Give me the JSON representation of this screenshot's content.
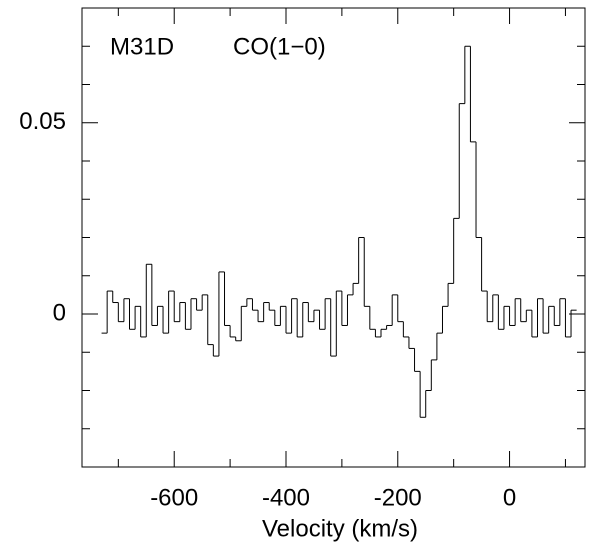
{
  "chart_data": {
    "type": "step",
    "source_label": "M31D",
    "line_label": "CO(1−0)",
    "xlabel": "Velocity (km/s)",
    "x": [
      -725,
      -715,
      -705,
      -695,
      -685,
      -675,
      -665,
      -655,
      -645,
      -635,
      -625,
      -615,
      -605,
      -595,
      -585,
      -575,
      -565,
      -555,
      -545,
      -535,
      -525,
      -515,
      -505,
      -495,
      -485,
      -475,
      -465,
      -455,
      -445,
      -435,
      -425,
      -415,
      -405,
      -395,
      -385,
      -375,
      -365,
      -355,
      -345,
      -335,
      -325,
      -315,
      -305,
      -295,
      -285,
      -275,
      -265,
      -255,
      -245,
      -235,
      -225,
      -215,
      -205,
      -195,
      -185,
      -175,
      -165,
      -155,
      -145,
      -135,
      -125,
      -115,
      -105,
      -95,
      -85,
      -75,
      -65,
      -55,
      -45,
      -35,
      -25,
      -15,
      -5,
      5,
      15,
      25,
      35,
      45,
      55,
      65,
      75,
      85,
      95,
      105,
      115
    ],
    "values": [
      -0.005,
      0.006,
      0.003,
      -0.002,
      0.004,
      -0.004,
      0.002,
      -0.006,
      0.013,
      -0.003,
      0.002,
      -0.005,
      0.006,
      -0.002,
      0.003,
      -0.004,
      0.004,
      0.001,
      0.005,
      -0.008,
      -0.011,
      0.011,
      -0.003,
      -0.006,
      -0.007,
      0.002,
      0.004,
      0.001,
      -0.002,
      0.003,
      0.001,
      -0.003,
      0.002,
      -0.005,
      0.004,
      -0.006,
      0.003,
      -0.002,
      0.001,
      -0.004,
      0.004,
      -0.011,
      0.006,
      -0.003,
      0.005,
      0.008,
      0.02,
      0.002,
      -0.004,
      -0.006,
      -0.004,
      -0.003,
      0.005,
      -0.002,
      -0.006,
      -0.009,
      -0.015,
      -0.027,
      -0.02,
      -0.012,
      -0.005,
      0.002,
      0.008,
      0.025,
      0.055,
      0.07,
      0.045,
      0.02,
      0.006,
      -0.002,
      0.005,
      -0.004,
      0.002,
      -0.003,
      0.004,
      -0.002,
      0.001,
      -0.006,
      0.004,
      -0.005,
      0.002,
      -0.003,
      0.004,
      -0.006,
      0.001
    ],
    "color": "#000000",
    "xlim": [
      -765,
      135
    ],
    "ylim": [
      -0.04,
      0.08
    ],
    "xticks": [
      -600,
      -400,
      -200,
      0
    ],
    "xminorticks": [
      -700,
      -500,
      -300,
      -100,
      100
    ],
    "yticks": [
      0,
      0.05
    ],
    "yminorticks": [
      -0.03,
      -0.02,
      -0.01,
      0.01,
      0.02,
      0.03,
      0.04,
      0.06,
      0.07
    ]
  }
}
